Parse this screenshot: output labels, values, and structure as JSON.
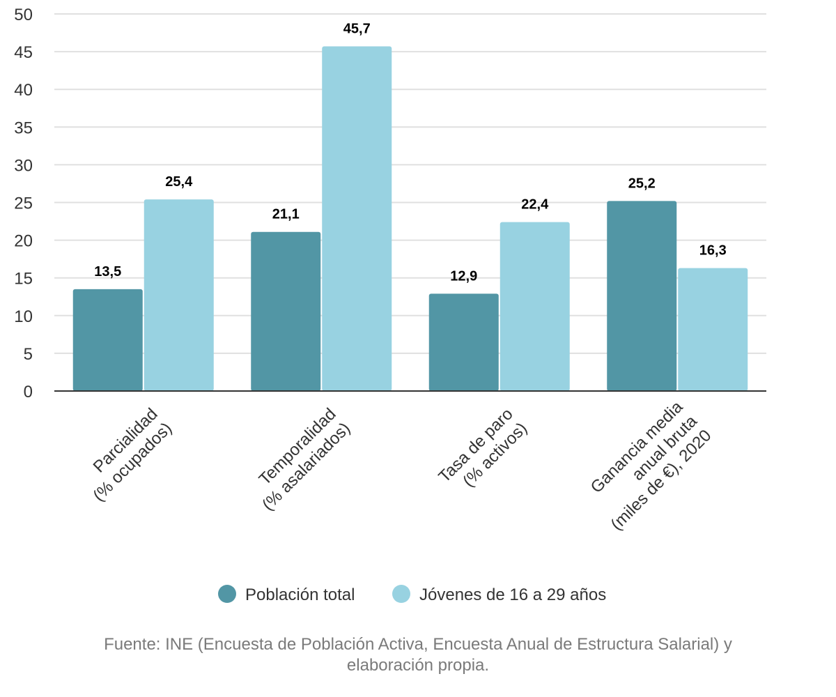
{
  "chart_data": {
    "type": "bar",
    "categories": [
      [
        "Parcialidad",
        "(% ocupados)"
      ],
      [
        "Temporalidad",
        "(% asalariados)"
      ],
      [
        "Tasa de paro",
        "(% activos)"
      ],
      [
        "Ganancia media",
        "anual bruta",
        "(miles de €), 2020"
      ]
    ],
    "series": [
      {
        "name": "Población total",
        "color": "#5296a5",
        "values": [
          13.5,
          21.1,
          12.9,
          25.2
        ],
        "labels": [
          "13,5",
          "21,1",
          "12,9",
          "25,2"
        ]
      },
      {
        "name": "Jóvenes de 16 a 29 años",
        "color": "#98d2e1",
        "values": [
          25.4,
          45.7,
          22.4,
          16.3
        ],
        "labels": [
          "25,4",
          "45,7",
          "22,4",
          "16,3"
        ]
      }
    ],
    "yticks": [
      "0",
      "5",
      "10",
      "15",
      "20",
      "25",
      "30",
      "35",
      "40",
      "45",
      "50"
    ],
    "ylim": [
      0,
      50
    ],
    "grid": true,
    "legend": "bottom",
    "colors": {
      "grid": "#e0e0e0",
      "axis": "#333333"
    }
  },
  "source_note": "Fuente: INE (Encuesta de Población Activa, Encuesta Anual de Estructura Salarial) y elaboración propia."
}
